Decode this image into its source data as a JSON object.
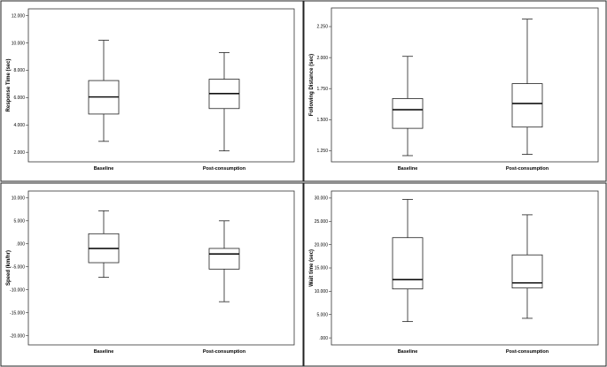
{
  "chart_data": [
    {
      "type": "boxplot",
      "ylabel": "Response Time (sec)",
      "categories": [
        "Baseline",
        "Post-consumption"
      ],
      "yticks": [
        2,
        4,
        6,
        8,
        10,
        12
      ],
      "ytick_labels": [
        "2.000",
        "4.000",
        "6.000",
        "8.000",
        "10.000",
        "12.000"
      ],
      "ylim": [
        1.3,
        12.5
      ],
      "boxes": [
        {
          "min": 2.8,
          "q1": 4.8,
          "median": 6.05,
          "q3": 7.25,
          "max": 10.2
        },
        {
          "min": 2.1,
          "q1": 5.2,
          "median": 6.3,
          "q3": 7.35,
          "max": 9.3
        }
      ]
    },
    {
      "type": "boxplot",
      "ylabel": "Following Distance (sec)",
      "categories": [
        "Baseline",
        "Post-consumption"
      ],
      "yticks": [
        1.25,
        1.5,
        1.75,
        2.0,
        2.25
      ],
      "ytick_labels": [
        "1.250",
        "1.500",
        "1.750",
        "2.000",
        "2.250"
      ],
      "ylim": [
        1.16,
        2.4
      ],
      "boxes": [
        {
          "min": 1.21,
          "q1": 1.43,
          "median": 1.58,
          "q3": 1.67,
          "max": 2.01
        },
        {
          "min": 1.22,
          "q1": 1.44,
          "median": 1.63,
          "q3": 1.79,
          "max": 2.31
        }
      ]
    },
    {
      "type": "boxplot",
      "ylabel": "Speed (km/hr)",
      "categories": [
        "Baseline",
        "Post-consumption"
      ],
      "yticks": [
        -20,
        -15,
        -10,
        -5,
        0,
        5,
        10
      ],
      "ytick_labels": [
        "-20.000",
        "-15.000",
        "-10.000",
        "-5.000",
        ".000",
        "5.000",
        "10.000"
      ],
      "ylim": [
        -22,
        11.5
      ],
      "boxes": [
        {
          "min": -7.3,
          "q1": -4.1,
          "median": -1.0,
          "q3": 2.2,
          "max": 7.2
        },
        {
          "min": -12.6,
          "q1": -5.5,
          "median": -2.2,
          "q3": -1.0,
          "max": 5.0
        }
      ]
    },
    {
      "type": "boxplot",
      "ylabel": "Wait time (sec)",
      "categories": [
        "Baseline",
        "Post-consumption"
      ],
      "yticks": [
        0,
        5,
        10,
        15,
        20,
        25,
        30
      ],
      "ytick_labels": [
        ".000",
        "5.000",
        "10.000",
        "15.000",
        "20.000",
        "25.000",
        "30.000"
      ],
      "ylim": [
        -1.5,
        31.5
      ],
      "boxes": [
        {
          "min": 3.5,
          "q1": 10.5,
          "median": 12.5,
          "q3": 21.5,
          "max": 29.7
        },
        {
          "min": 4.2,
          "q1": 10.7,
          "median": 11.8,
          "q3": 17.8,
          "max": 26.4
        }
      ]
    }
  ]
}
